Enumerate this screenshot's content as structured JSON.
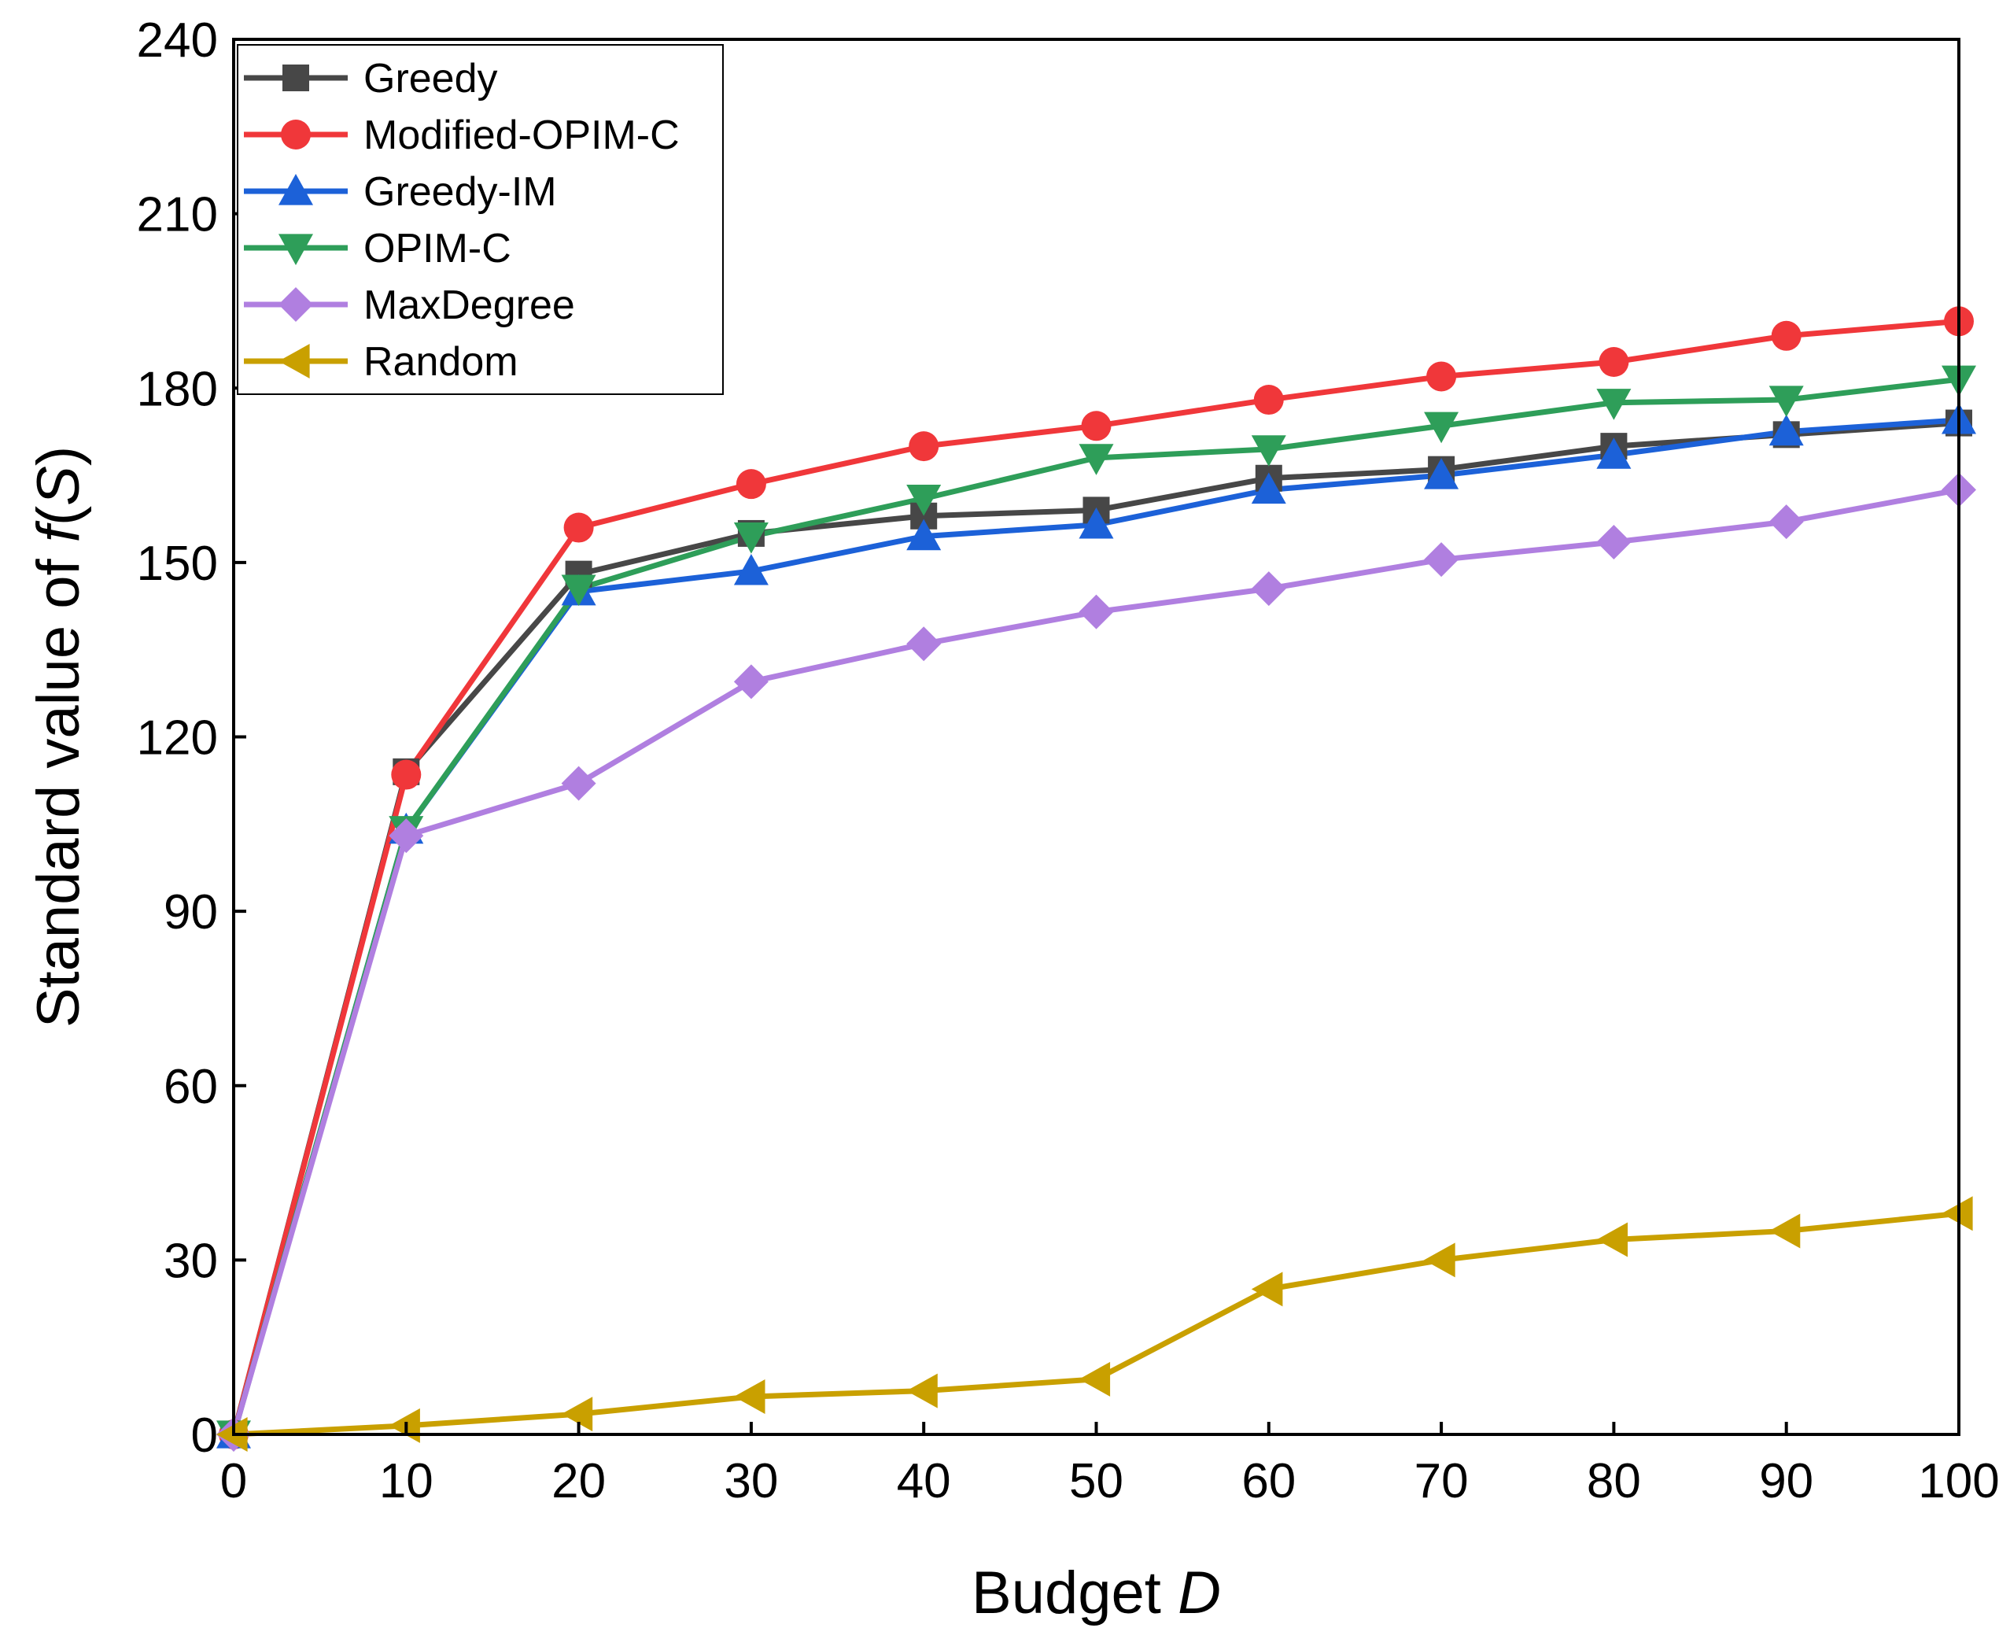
{
  "chart_data": {
    "type": "line",
    "title": "",
    "xlabel": "Budget",
    "xlabel_italic": "D",
    "ylabel": "Standard value of",
    "ylabel_italic_f": "f",
    "ylabel_paren_open": "(",
    "ylabel_italic_S": "S",
    "ylabel_paren_close": ")",
    "xlim": [
      0,
      100
    ],
    "ylim": [
      0,
      240
    ],
    "xticks": [
      0,
      10,
      20,
      30,
      40,
      50,
      60,
      70,
      80,
      90,
      100
    ],
    "yticks": [
      0,
      30,
      60,
      90,
      120,
      150,
      180,
      210,
      240
    ],
    "x": [
      0,
      10,
      20,
      30,
      40,
      50,
      60,
      70,
      80,
      90,
      100
    ],
    "legend_position": "top-left",
    "grid": false,
    "series": [
      {
        "name": "Greedy",
        "color": "#474747",
        "marker": "square",
        "values": [
          0,
          114,
          148,
          155,
          158,
          159,
          164.5,
          166,
          170,
          172,
          174
        ]
      },
      {
        "name": "Modified-OPIM-C",
        "color": "#f0373a",
        "marker": "circle",
        "values": [
          0,
          113.5,
          156,
          163.5,
          170,
          173.5,
          178,
          182,
          184.5,
          189,
          191.5
        ]
      },
      {
        "name": "Greedy-IM",
        "color": "#1c61d8",
        "marker": "triangle-up",
        "values": [
          0,
          104,
          145,
          148.5,
          154.5,
          156.5,
          162.5,
          165,
          168.5,
          172.5,
          174.5
        ]
      },
      {
        "name": "OPIM-C",
        "color": "#2e9e59",
        "marker": "triangle-down",
        "values": [
          0,
          104,
          145.5,
          154.5,
          161,
          168,
          169.5,
          173.5,
          177.5,
          178,
          181.5
        ]
      },
      {
        "name": "MaxDegree",
        "color": "#b07fe0",
        "marker": "diamond",
        "values": [
          0,
          103,
          112,
          129.5,
          136,
          141.5,
          145.5,
          150.5,
          153.5,
          157,
          162.5
        ]
      },
      {
        "name": "Random",
        "color": "#c9a000",
        "marker": "triangle-left",
        "values": [
          0,
          1.5,
          3.5,
          6.5,
          7.5,
          9.5,
          25,
          30,
          33.5,
          35,
          38
        ]
      }
    ]
  }
}
